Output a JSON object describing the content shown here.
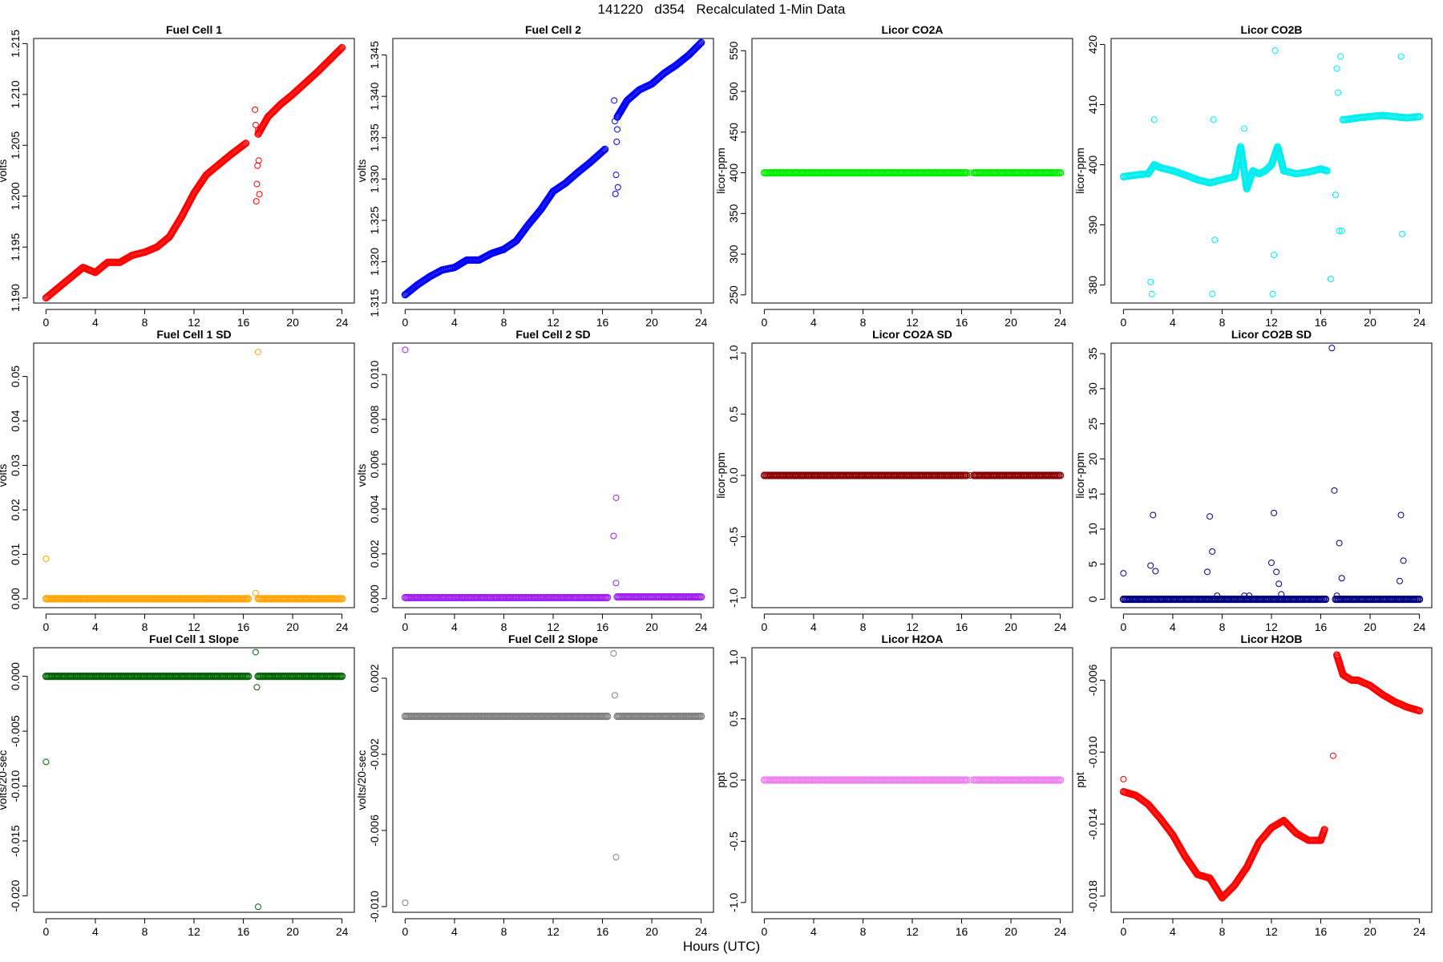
{
  "page": {
    "title": "141220   d354   Recalculated 1-Min Data",
    "xlabel": "Hours (UTC)"
  },
  "chart_data": [
    {
      "type": "scatter",
      "title": "Fuel Cell 1",
      "ylabel": "volts",
      "color": "#ff0000",
      "xlim": [
        -1,
        25
      ],
      "ylim": [
        1.1895,
        1.2155
      ],
      "xticks": [
        0,
        4,
        8,
        12,
        16,
        20,
        24
      ],
      "yticks": [
        1.19,
        1.195,
        1.2,
        1.205,
        1.21,
        1.215
      ],
      "ytick_labels": [
        "1.190",
        "1.195",
        "1.200",
        "1.205",
        "1.210",
        "1.215"
      ],
      "series": [
        {
          "x": [
            0,
            1,
            2,
            3,
            4,
            5,
            6,
            7,
            8,
            9,
            10,
            11,
            12,
            13,
            14,
            15,
            16.2
          ],
          "y": [
            1.19,
            1.191,
            1.192,
            1.193,
            1.1925,
            1.1935,
            1.1935,
            1.1942,
            1.1945,
            1.195,
            1.196,
            1.198,
            1.2003,
            1.2021,
            1.2031,
            1.2041,
            1.2052
          ]
        },
        {
          "x": [
            17.2,
            18,
            19,
            20,
            21,
            22,
            23,
            24
          ],
          "y": [
            1.2061,
            1.2078,
            1.209,
            1.21,
            1.2111,
            1.2122,
            1.2134,
            1.2146
          ]
        }
      ],
      "outliers": {
        "x": [
          16.95,
          17.0,
          17.05,
          17.1,
          17.15,
          17.2,
          17.25,
          17.3
        ],
        "y": [
          1.2085,
          1.207,
          1.1995,
          1.2012,
          1.203,
          1.2065,
          1.2035,
          1.2002
        ]
      }
    },
    {
      "type": "scatter",
      "title": "Fuel Cell 2",
      "ylabel": "volts",
      "color": "#0000ff",
      "xlim": [
        -1,
        25
      ],
      "ylim": [
        1.315,
        1.347
      ],
      "xticks": [
        0,
        4,
        8,
        12,
        16,
        20,
        24
      ],
      "yticks": [
        1.315,
        1.32,
        1.325,
        1.33,
        1.335,
        1.34,
        1.345
      ],
      "ytick_labels": [
        "1.315",
        "1.320",
        "1.325",
        "1.330",
        "1.335",
        "1.340",
        "1.345"
      ],
      "series": [
        {
          "x": [
            0,
            1,
            2,
            3,
            4,
            5,
            6,
            7,
            8,
            9,
            10,
            11,
            12,
            13,
            14,
            15,
            16.2
          ],
          "y": [
            1.316,
            1.3172,
            1.3182,
            1.319,
            1.3193,
            1.3202,
            1.3202,
            1.321,
            1.3215,
            1.3225,
            1.3245,
            1.3263,
            1.3285,
            1.3295,
            1.3308,
            1.332,
            1.3336
          ]
        },
        {
          "x": [
            17.2,
            18,
            19,
            20,
            21,
            22,
            23,
            24
          ],
          "y": [
            1.3375,
            1.3395,
            1.3408,
            1.3415,
            1.3428,
            1.3438,
            1.345,
            1.3465
          ]
        }
      ],
      "outliers": {
        "x": [
          16.95,
          17.0,
          17.05,
          17.1,
          17.15,
          17.2,
          17.25
        ],
        "y": [
          1.3395,
          1.337,
          1.3282,
          1.3305,
          1.3345,
          1.336,
          1.329
        ]
      }
    },
    {
      "type": "scatter",
      "title": "Licor CO2A",
      "ylabel": "licor-ppm",
      "color": "#00ee00",
      "xlim": [
        -1,
        25
      ],
      "ylim": [
        240,
        565
      ],
      "xticks": [
        0,
        4,
        8,
        12,
        16,
        20,
        24
      ],
      "yticks": [
        250,
        300,
        350,
        400,
        450,
        500,
        550
      ],
      "ytick_labels": [
        "250",
        "300",
        "350",
        "400",
        "450",
        "500",
        "550"
      ],
      "series": [
        {
          "x": [
            0,
            16.4
          ],
          "y": [
            400,
            400
          ]
        },
        {
          "x": [
            17.0,
            24
          ],
          "y": [
            400,
            400
          ]
        }
      ],
      "outliers": {
        "x": [
          16.7
        ],
        "y": [
          400
        ]
      }
    },
    {
      "type": "scatter",
      "title": "Licor CO2B",
      "ylabel": "licor-ppm",
      "color": "#00eeee",
      "xlim": [
        -1,
        25
      ],
      "ylim": [
        377,
        421
      ],
      "xticks": [
        0,
        4,
        8,
        12,
        16,
        20,
        24
      ],
      "yticks": [
        380,
        390,
        400,
        410,
        420
      ],
      "ytick_labels": [
        "380",
        "390",
        "400",
        "410",
        "420"
      ],
      "series": [
        {
          "x": [
            0,
            1,
            2,
            2.5,
            3,
            4,
            5,
            6,
            7,
            8,
            9,
            9.5,
            10,
            10.5,
            11,
            11.5,
            12,
            12.5,
            13,
            14,
            15,
            16,
            16.5
          ],
          "y": [
            398,
            398.3,
            398.5,
            400,
            399.5,
            399,
            398.3,
            397.5,
            397,
            397.5,
            398,
            403,
            396,
            399,
            398.5,
            399,
            400,
            403,
            399,
            398.5,
            398.8,
            399.3,
            399
          ]
        },
        {
          "x": [
            17.8,
            18,
            19,
            20,
            21,
            22,
            23,
            24
          ],
          "y": [
            407.5,
            407.5,
            407.8,
            408,
            408.2,
            408,
            407.8,
            408
          ]
        }
      ],
      "outliers": {
        "x": [
          2.2,
          2.3,
          2.5,
          7.2,
          7.3,
          7.4,
          9.8,
          12.1,
          12.2,
          12.3,
          16.8,
          17.2,
          17.3,
          17.4,
          17.5,
          17.6,
          17.7,
          22.5,
          22.6
        ],
        "y": [
          380.5,
          378.5,
          407.5,
          378.5,
          407.5,
          387.5,
          406,
          378.5,
          385,
          419,
          381,
          395,
          416,
          412,
          389,
          418,
          389,
          418,
          388.5
        ]
      }
    },
    {
      "type": "scatter",
      "title": "Fuel Cell 1 SD",
      "ylabel": "volts",
      "color": "#ffa500",
      "xlim": [
        -1,
        25
      ],
      "ylim": [
        -0.002,
        0.0575
      ],
      "xticks": [
        0,
        4,
        8,
        12,
        16,
        20,
        24
      ],
      "yticks": [
        0.0,
        0.01,
        0.02,
        0.03,
        0.04,
        0.05
      ],
      "ytick_labels": [
        "0.00",
        "0.01",
        "0.02",
        "0.03",
        "0.04",
        "0.05"
      ],
      "series": [
        {
          "x": [
            0,
            16.4
          ],
          "y": [
            0.0,
            0.0
          ]
        },
        {
          "x": [
            17.2,
            24
          ],
          "y": [
            0.0,
            0.0
          ]
        }
      ],
      "outliers": {
        "x": [
          0,
          17.0,
          17.2
        ],
        "y": [
          0.009,
          0.0013,
          0.0555
        ]
      }
    },
    {
      "type": "scatter",
      "title": "Fuel Cell 2 SD",
      "ylabel": "volts",
      "color": "#a020f0",
      "xlim": [
        -1,
        25
      ],
      "ylim": [
        -0.0004,
        0.0114
      ],
      "xticks": [
        0,
        4,
        8,
        12,
        16,
        20,
        24
      ],
      "yticks": [
        0.0,
        0.002,
        0.004,
        0.006,
        0.008,
        0.01
      ],
      "ytick_labels": [
        "0.000",
        "0.002",
        "0.004",
        "0.006",
        "0.008",
        "0.010"
      ],
      "series": [
        {
          "x": [
            0,
            16.4
          ],
          "y": [
            5e-05,
            5e-05
          ]
        },
        {
          "x": [
            17.2,
            24
          ],
          "y": [
            8e-05,
            8e-05
          ]
        }
      ],
      "outliers": {
        "x": [
          0,
          16.9,
          17.1,
          17.1
        ],
        "y": [
          0.0111,
          0.0028,
          0.0045,
          0.0007
        ]
      }
    },
    {
      "type": "scatter",
      "title": "Licor CO2A SD",
      "ylabel": "licor-ppm",
      "color": "#8b0000",
      "xlim": [
        -1,
        25
      ],
      "ylim": [
        -1.08,
        1.08
      ],
      "xticks": [
        0,
        4,
        8,
        12,
        16,
        20,
        24
      ],
      "yticks": [
        -1.0,
        -0.5,
        0.0,
        0.5,
        1.0
      ],
      "ytick_labels": [
        "-1.0",
        "-0.5",
        "0.0",
        "0.5",
        "1.0"
      ],
      "series": [
        {
          "x": [
            0,
            16.4
          ],
          "y": [
            0,
            0
          ]
        },
        {
          "x": [
            17.0,
            24
          ],
          "y": [
            0,
            0
          ]
        }
      ],
      "outliers": {
        "x": [
          16.7
        ],
        "y": [
          0
        ]
      }
    },
    {
      "type": "scatter",
      "title": "Licor CO2B SD",
      "ylabel": "licor-ppm",
      "color": "#000080",
      "xlim": [
        -1,
        25
      ],
      "ylim": [
        -1.2,
        36.5
      ],
      "xticks": [
        0,
        4,
        8,
        12,
        16,
        20,
        24
      ],
      "yticks": [
        0,
        5,
        10,
        15,
        20,
        25,
        30,
        35
      ],
      "ytick_labels": [
        "0",
        "5",
        "10",
        "15",
        "20",
        "25",
        "30",
        "35"
      ],
      "series": [
        {
          "x": [
            0,
            16.4
          ],
          "y": [
            0,
            0
          ]
        },
        {
          "x": [
            17.2,
            24
          ],
          "y": [
            0,
            0
          ]
        }
      ],
      "outliers": {
        "x": [
          0,
          2.2,
          2.4,
          2.6,
          6.8,
          7.0,
          7.2,
          7.6,
          9.8,
          10.2,
          12.0,
          12.2,
          12.4,
          12.6,
          12.8,
          16.9,
          17.1,
          17.3,
          17.5,
          17.7,
          22.4,
          22.5,
          22.7
        ],
        "y": [
          3.7,
          4.8,
          12,
          4,
          3.9,
          11.8,
          6.8,
          0.5,
          0.5,
          0.5,
          5.2,
          12.3,
          3.9,
          2.2,
          0.7,
          35.8,
          15.5,
          0.5,
          8,
          3,
          2.6,
          12,
          5.5
        ]
      }
    },
    {
      "type": "scatter",
      "title": "Fuel Cell 1 Slope",
      "ylabel": "volts/20-sec",
      "color": "#006400",
      "xlim": [
        -1,
        25
      ],
      "ylim": [
        -0.0215,
        0.0026
      ],
      "xticks": [
        0,
        4,
        8,
        12,
        16,
        20,
        24
      ],
      "yticks": [
        -0.02,
        -0.015,
        -0.01,
        -0.005,
        0.0
      ],
      "ytick_labels": [
        "-0.020",
        "-0.015",
        "-0.010",
        "-0.005",
        "0.000"
      ],
      "series": [
        {
          "x": [
            0,
            16.4
          ],
          "y": [
            0,
            0
          ]
        },
        {
          "x": [
            17.2,
            24
          ],
          "y": [
            0,
            0
          ]
        }
      ],
      "outliers": {
        "x": [
          0,
          17.0,
          17.1,
          17.2
        ],
        "y": [
          -0.0078,
          0.0022,
          -0.001,
          -0.021
        ]
      }
    },
    {
      "type": "scatter",
      "title": "Fuel Cell 2 Slope",
      "ylabel": "volts/20-sec",
      "color": "#808080",
      "xlim": [
        -1,
        25
      ],
      "ylim": [
        -0.0103,
        0.0036
      ],
      "xticks": [
        0,
        4,
        8,
        12,
        16,
        20,
        24
      ],
      "yticks": [
        -0.01,
        -0.006,
        -0.002,
        0.002
      ],
      "ytick_labels": [
        "-0.010",
        "-0.006",
        "-0.002",
        "0.002"
      ],
      "series": [
        {
          "x": [
            0,
            16.4
          ],
          "y": [
            0,
            0
          ]
        },
        {
          "x": [
            17.2,
            24
          ],
          "y": [
            0,
            0
          ]
        }
      ],
      "outliers": {
        "x": [
          0,
          16.9,
          17.0,
          17.1
        ],
        "y": [
          -0.0098,
          0.0033,
          0.0011,
          -0.0074
        ]
      }
    },
    {
      "type": "scatter",
      "title": "Licor H2OA",
      "ylabel": "ppt",
      "color": "#ee82ee",
      "xlim": [
        -1,
        25
      ],
      "ylim": [
        -1.08,
        1.08
      ],
      "xticks": [
        0,
        4,
        8,
        12,
        16,
        20,
        24
      ],
      "yticks": [
        -1.0,
        -0.5,
        0.0,
        0.5,
        1.0
      ],
      "ytick_labels": [
        "-1.0",
        "-0.5",
        "0.0",
        "0.5",
        "1.0"
      ],
      "series": [
        {
          "x": [
            0,
            16.4
          ],
          "y": [
            0,
            0
          ]
        },
        {
          "x": [
            17.0,
            24
          ],
          "y": [
            0,
            0
          ]
        }
      ],
      "outliers": {
        "x": [
          16.7
        ],
        "y": [
          0
        ]
      }
    },
    {
      "type": "scatter",
      "title": "Licor H2OB",
      "ylabel": "ppt",
      "color": "#ff0000",
      "xlim": [
        -1,
        25
      ],
      "ylim": [
        -0.0189,
        -0.0042
      ],
      "xticks": [
        0,
        4,
        8,
        12,
        16,
        20,
        24
      ],
      "yticks": [
        -0.018,
        -0.014,
        -0.01,
        -0.006
      ],
      "ytick_labels": [
        "-0.018",
        "-0.014",
        "-0.010",
        "-0.006"
      ],
      "series": [
        {
          "x": [
            0,
            1,
            2,
            3,
            4,
            5,
            6,
            7,
            8,
            9,
            10,
            11,
            12,
            13,
            14,
            15,
            16,
            16.3
          ],
          "y": [
            -0.0122,
            -0.0124,
            -0.0129,
            -0.0137,
            -0.0146,
            -0.0158,
            -0.0168,
            -0.017,
            -0.0181,
            -0.0174,
            -0.0164,
            -0.015,
            -0.0142,
            -0.0138,
            -0.0145,
            -0.0149,
            -0.0149,
            -0.0143
          ]
        },
        {
          "x": [
            17.3,
            17.8,
            18.5,
            19,
            20,
            21,
            22,
            23,
            24
          ],
          "y": [
            -0.0046,
            -0.0057,
            -0.006,
            -0.006,
            -0.0063,
            -0.0068,
            -0.0072,
            -0.0075,
            -0.0077
          ]
        }
      ],
      "outliers": {
        "x": [
          0,
          17.0
        ],
        "y": [
          -0.0115,
          -0.0102
        ]
      }
    }
  ]
}
